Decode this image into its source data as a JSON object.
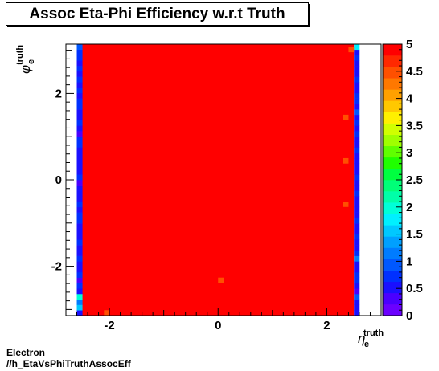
{
  "chart_data": {
    "type": "heatmap",
    "title": "Assoc Eta-Phi Efficiency w.r.t Truth",
    "xlabel": {
      "main": "η",
      "sup": "truth",
      "sub": "e"
    },
    "ylabel": {
      "main": "φ",
      "sup": "truth",
      "sub": "e"
    },
    "xlim": [
      -2.8,
      3.0
    ],
    "ylim": [
      -3.1416,
      3.1416
    ],
    "zlim": [
      0,
      5
    ],
    "x_ticks": [
      -2,
      0,
      2
    ],
    "x_tick_labels": [
      "-2",
      "0",
      "2"
    ],
    "y_ticks": [
      -2,
      0,
      2
    ],
    "y_tick_labels": [
      "-2",
      "0",
      "2"
    ],
    "z_ticks": [
      0,
      0.5,
      1,
      1.5,
      2,
      2.5,
      3,
      3.5,
      4,
      4.5,
      5
    ],
    "z_tick_labels": [
      "0",
      "0.5",
      "1",
      "1.5",
      "2",
      "2.5",
      "3",
      "3.5",
      "4",
      "4.5",
      "5"
    ],
    "nbins_x": 50,
    "nbins_y": 50,
    "bin_width_x": 0.1,
    "bin_width_phi": 0.12566,
    "bulk": {
      "eta_range": [
        -2.5,
        2.5
      ],
      "value": 5
    },
    "left_edge_column": {
      "eta_range": [
        -2.6,
        -2.5
      ],
      "values": [
        0.6,
        1.5,
        1.1,
        2.0,
        0.6,
        0.8,
        0.4,
        0.7,
        0.5,
        0.6,
        0.7,
        0.5,
        0.6,
        0.8,
        0.5,
        0.6,
        0.6,
        0.7,
        0.8,
        0.5,
        0.7,
        0.6,
        0.6,
        0.5,
        0.3,
        0.7,
        0.6,
        0.6,
        0.6,
        0.6,
        0.6,
        0.8,
        0.7,
        0.4,
        0.6,
        0.7,
        0.6,
        0.6,
        0.8,
        0.7,
        0.6,
        0.7,
        0.6,
        0.7,
        0.6,
        0.8,
        0.6,
        0.8,
        0.7,
        0.9
      ]
    },
    "right_edge_column": {
      "eta_range": [
        2.5,
        2.6
      ],
      "values": [
        0.6,
        0.5,
        0.5,
        1.0,
        0.4,
        0.6,
        0.8,
        0.7,
        0.6,
        0.5,
        1.2,
        0.7,
        0.5,
        0.6,
        0.7,
        0.5,
        0.6,
        0.7,
        0.6,
        0.5,
        0.6,
        0.6,
        0.7,
        0.5,
        0.6,
        0.7,
        0.6,
        0.6,
        0.6,
        0.6,
        0.7,
        0.5,
        0.6,
        0.7,
        0.6,
        0.7,
        0.6,
        1.0,
        0.5,
        0.8,
        0.7,
        0.6,
        0.6,
        0.7,
        0.5,
        0.6,
        0.5,
        0.8,
        0.6,
        1.7
      ]
    },
    "special_cells": [
      {
        "eta": -2.05,
        "phi": -3.079,
        "value": 4.5
      },
      {
        "eta": 0.05,
        "phi": -2.325,
        "value": 4.5
      },
      {
        "eta": 2.35,
        "phi": -0.565,
        "value": 4.5
      },
      {
        "eta": 2.35,
        "phi": 0.44,
        "value": 4.5
      },
      {
        "eta": 2.35,
        "phi": 1.445,
        "value": 4.5
      },
      {
        "eta": 2.45,
        "phi": 3.016,
        "value": 4.5
      },
      {
        "eta": 2.45,
        "phi": 0.063,
        "value": 4.8
      }
    ],
    "palette": [
      "#6b00ff",
      "#4a00ff",
      "#1a10ff",
      "#0030ff",
      "#0058ff",
      "#007cff",
      "#00a0ff",
      "#00c8ff",
      "#00f0ff",
      "#00ffd8",
      "#00ffa8",
      "#00ff78",
      "#00ff40",
      "#20ff00",
      "#60ff00",
      "#a0ff00",
      "#d0ff00",
      "#fff000",
      "#ffc800",
      "#ffa000",
      "#ff7800",
      "#ff5000",
      "#ff2800",
      "#ff0000"
    ]
  },
  "captions": {
    "line1": "Electron",
    "line2": "//h_EtaVsPhiTruthAssocEff"
  }
}
